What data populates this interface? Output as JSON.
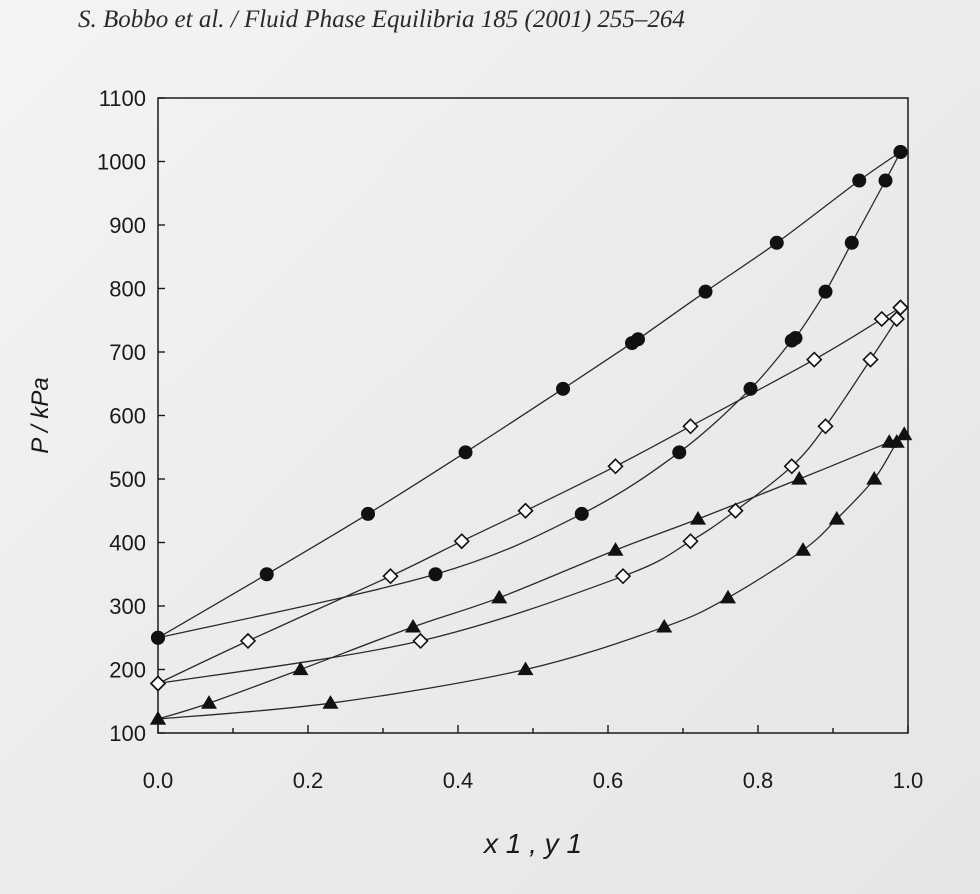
{
  "header": {
    "citation": "S. Bobbo et al. / Fluid Phase Equilibria 185 (2001) 255–264"
  },
  "chart_data": {
    "type": "scatter",
    "title": "",
    "xlabel": "x 1 , y 1",
    "ylabel": "P / kPa",
    "xlim": [
      0.0,
      1.0
    ],
    "ylim": [
      100,
      1100
    ],
    "x_ticks": [
      "0.0",
      "0.2",
      "0.4",
      "0.6",
      "0.8",
      "1.0"
    ],
    "y_ticks": [
      "100",
      "200",
      "300",
      "400",
      "500",
      "600",
      "700",
      "800",
      "900",
      "1000",
      "1100"
    ],
    "grid": false,
    "legend": "none",
    "series": [
      {
        "marker": "filled-circle",
        "curve": "bubble",
        "points": [
          [
            0.0,
            250
          ],
          [
            0.145,
            350
          ],
          [
            0.28,
            445
          ],
          [
            0.41,
            542
          ],
          [
            0.54,
            642
          ],
          [
            0.632,
            714
          ],
          [
            0.64,
            720
          ],
          [
            0.73,
            795
          ],
          [
            0.825,
            872
          ],
          [
            0.935,
            970
          ],
          [
            0.99,
            1015
          ]
        ]
      },
      {
        "marker": "filled-circle",
        "curve": "dew",
        "points": [
          [
            0.0,
            250
          ],
          [
            0.37,
            350
          ],
          [
            0.565,
            445
          ],
          [
            0.695,
            542
          ],
          [
            0.79,
            642
          ],
          [
            0.845,
            718
          ],
          [
            0.85,
            722
          ],
          [
            0.89,
            795
          ],
          [
            0.925,
            872
          ],
          [
            0.97,
            970
          ],
          [
            0.99,
            1015
          ]
        ]
      },
      {
        "marker": "open-diamond",
        "curve": "bubble",
        "points": [
          [
            0.0,
            178
          ],
          [
            0.12,
            245
          ],
          [
            0.31,
            347
          ],
          [
            0.405,
            402
          ],
          [
            0.49,
            450
          ],
          [
            0.61,
            520
          ],
          [
            0.71,
            583
          ],
          [
            0.875,
            688
          ],
          [
            0.965,
            752
          ],
          [
            0.99,
            770
          ]
        ]
      },
      {
        "marker": "open-diamond",
        "curve": "dew",
        "points": [
          [
            0.0,
            178
          ],
          [
            0.35,
            245
          ],
          [
            0.62,
            347
          ],
          [
            0.71,
            402
          ],
          [
            0.77,
            450
          ],
          [
            0.845,
            520
          ],
          [
            0.89,
            583
          ],
          [
            0.95,
            688
          ],
          [
            0.985,
            752
          ],
          [
            0.99,
            770
          ]
        ]
      },
      {
        "marker": "filled-triangle",
        "curve": "bubble",
        "points": [
          [
            0.0,
            122
          ],
          [
            0.068,
            147
          ],
          [
            0.19,
            200
          ],
          [
            0.34,
            267
          ],
          [
            0.455,
            313
          ],
          [
            0.61,
            388
          ],
          [
            0.72,
            437
          ],
          [
            0.855,
            500
          ],
          [
            0.975,
            558
          ],
          [
            0.995,
            570
          ]
        ]
      },
      {
        "marker": "filled-triangle",
        "curve": "dew",
        "points": [
          [
            0.0,
            122
          ],
          [
            0.23,
            147
          ],
          [
            0.49,
            200
          ],
          [
            0.675,
            267
          ],
          [
            0.76,
            313
          ],
          [
            0.86,
            388
          ],
          [
            0.905,
            437
          ],
          [
            0.955,
            500
          ],
          [
            0.985,
            558
          ],
          [
            0.995,
            570
          ]
        ]
      }
    ]
  }
}
